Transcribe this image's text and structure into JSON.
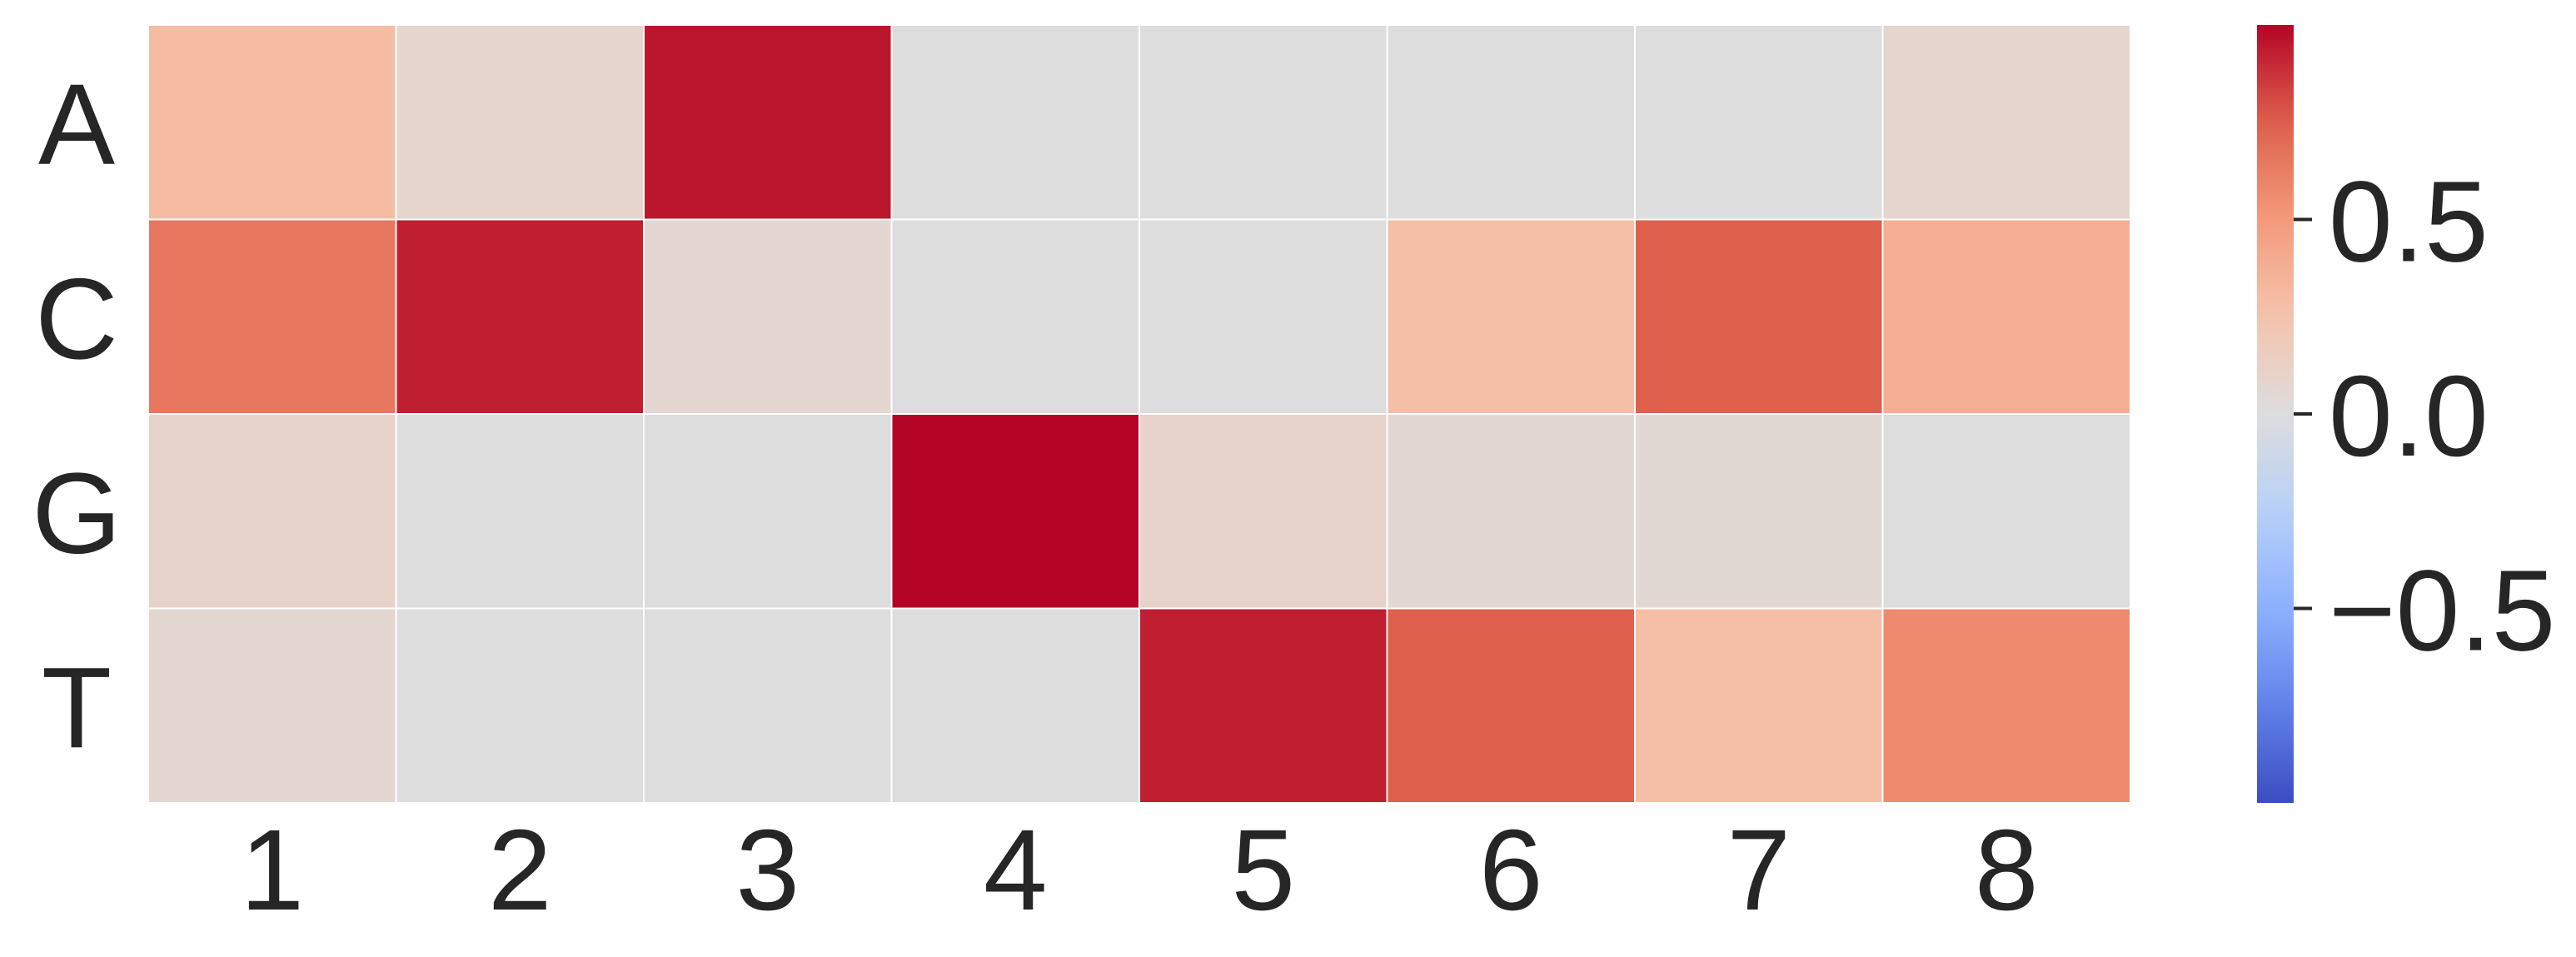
{
  "chart_data": {
    "type": "heatmap",
    "title": "",
    "xlabel": "",
    "ylabel": "",
    "x_categories": [
      "1",
      "2",
      "3",
      "4",
      "5",
      "6",
      "7",
      "8"
    ],
    "y_categories": [
      "A",
      "C",
      "G",
      "T"
    ],
    "values": [
      [
        0.3,
        0.08,
        0.95,
        0.0,
        0.0,
        0.0,
        0.0,
        0.08
      ],
      [
        0.65,
        0.93,
        0.07,
        0.0,
        0.0,
        0.28,
        0.75,
        0.38
      ],
      [
        0.1,
        0.0,
        0.0,
        1.0,
        0.1,
        0.06,
        0.05,
        0.0
      ],
      [
        0.07,
        0.0,
        0.0,
        0.0,
        0.93,
        0.75,
        0.28,
        0.57
      ]
    ],
    "colormap": "coolwarm",
    "color_range": [
      -1,
      1
    ],
    "colorbar": {
      "ticks": [
        0.5,
        0.0,
        -0.5
      ],
      "tick_labels": [
        "0.5",
        "0.0",
        "−0.5"
      ]
    },
    "grid_lines": "white"
  }
}
